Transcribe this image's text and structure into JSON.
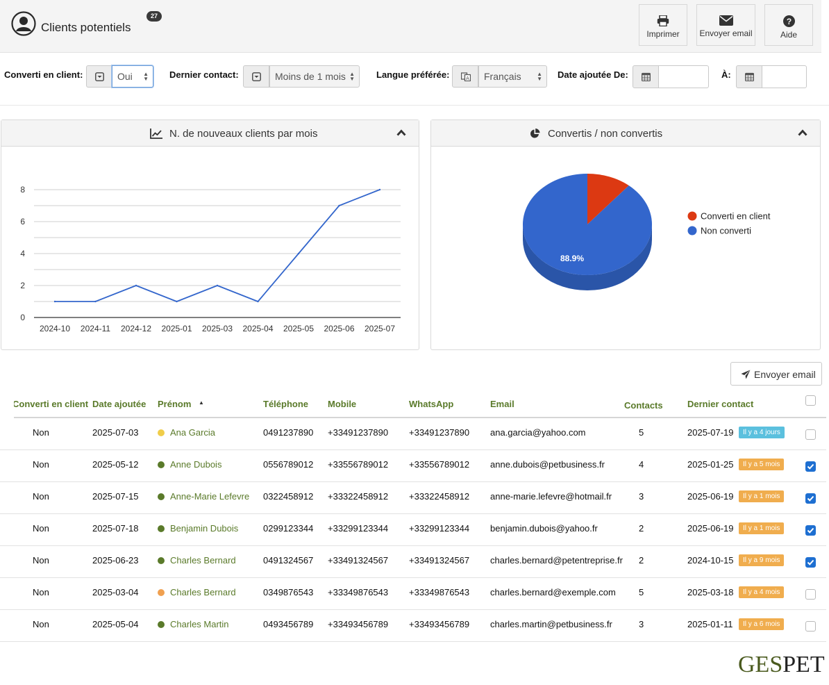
{
  "header": {
    "title": "Clients potentiels",
    "count": "27",
    "buttons": {
      "print": "Imprimer",
      "email": "Envoyer email",
      "help": "Aide"
    }
  },
  "filters": {
    "converted": {
      "label": "Converti en client:",
      "value": "Oui"
    },
    "last_contact": {
      "label": "Dernier contact:",
      "value": "Moins de 1 mois"
    },
    "language": {
      "label": "Langue préférée:",
      "value": "Français"
    },
    "date_from": {
      "label": "Date ajoutée De:",
      "value": ""
    },
    "date_to": {
      "label": "À:",
      "value": ""
    }
  },
  "panels": {
    "left_title": "N. de nouveaux clients par mois",
    "right_title": "Convertis / non convertis"
  },
  "chart_data": [
    {
      "type": "line",
      "title": "N. de nouveaux clients par mois",
      "categories": [
        "2024-10",
        "2024-11",
        "2024-12",
        "2025-01",
        "2025-03",
        "2025-04",
        "2025-05",
        "2025-06",
        "2025-07"
      ],
      "series": [
        {
          "values": [
            1,
            1,
            2,
            1,
            2,
            1,
            4,
            7,
            8
          ]
        }
      ],
      "y_ticks": [
        0,
        2,
        4,
        6,
        8
      ],
      "ylim": [
        0,
        8
      ],
      "grid": true,
      "color": "#3366cc"
    },
    {
      "type": "pie",
      "title": "Convertis / non convertis",
      "slices": [
        {
          "label": "Converti en client",
          "value": 11.1,
          "color": "#dc3912"
        },
        {
          "label": "Non converti",
          "value": 88.9,
          "color": "#3366cc"
        }
      ],
      "data_labels": [
        "88.9%"
      ],
      "legend": "right"
    }
  ],
  "table": {
    "send_email_label": "Envoyer email",
    "columns": [
      "Converti en client",
      "Date ajoutée",
      "Prénom",
      "Téléphone",
      "Mobile",
      "WhatsApp",
      "Email",
      "Contacts",
      "Dernier contact"
    ],
    "rows": [
      {
        "converted": "Non",
        "added": "2025-07-03",
        "dot": "#f0cd4a",
        "name": "Ana Garcia",
        "phone": "0491237890",
        "mobile": "+33491237890",
        "whatsapp": "+33491237890",
        "email": "ana.garcia@yahoo.com",
        "contacts": "5",
        "last": "2025-07-19",
        "ago": "Il y a 4 jours",
        "ago_color": "#5bc0de",
        "checked": false
      },
      {
        "converted": "Non",
        "added": "2025-05-12",
        "dot": "#5a7a2a",
        "name": "Anne Dubois",
        "phone": "0556789012",
        "mobile": "+33556789012",
        "whatsapp": "+33556789012",
        "email": "anne.dubois@petbusiness.fr",
        "contacts": "4",
        "last": "2025-01-25",
        "ago": "Il y a 5 mois",
        "ago_color": "#f0ad4e",
        "checked": true
      },
      {
        "converted": "Non",
        "added": "2025-07-15",
        "dot": "#5a7a2a",
        "name": "Anne-Marie Lefevre",
        "phone": "0322458912",
        "mobile": "+33322458912",
        "whatsapp": "+33322458912",
        "email": "anne-marie.lefevre@hotmail.fr",
        "contacts": "3",
        "last": "2025-06-19",
        "ago": "Il y a 1 mois",
        "ago_color": "#f0ad4e",
        "checked": true
      },
      {
        "converted": "Non",
        "added": "2025-07-18",
        "dot": "#5a7a2a",
        "name": "Benjamin Dubois",
        "phone": "0299123344",
        "mobile": "+33299123344",
        "whatsapp": "+33299123344",
        "email": "benjamin.dubois@yahoo.fr",
        "contacts": "2",
        "last": "2025-06-19",
        "ago": "Il y a 1 mois",
        "ago_color": "#f0ad4e",
        "checked": true
      },
      {
        "converted": "Non",
        "added": "2025-06-23",
        "dot": "#5a7a2a",
        "name": "Charles Bernard",
        "phone": "0491324567",
        "mobile": "+33491324567",
        "whatsapp": "+33491324567",
        "email": "charles.bernard@petentreprise.fr",
        "contacts": "2",
        "last": "2024-10-15",
        "ago": "Il y a 9 mois",
        "ago_color": "#f0ad4e",
        "checked": true
      },
      {
        "converted": "Non",
        "added": "2025-03-04",
        "dot": "#f0a050",
        "name": "Charles Bernard",
        "phone": "0349876543",
        "mobile": "+33349876543",
        "whatsapp": "+33349876543",
        "email": "charles.bernard@exemple.com",
        "contacts": "5",
        "last": "2025-03-18",
        "ago": "Il y a 4 mois",
        "ago_color": "#f0ad4e",
        "checked": false
      },
      {
        "converted": "Non",
        "added": "2025-05-04",
        "dot": "#5a7a2a",
        "name": "Charles Martin",
        "phone": "0493456789",
        "mobile": "+33493456789",
        "whatsapp": "+33493456789",
        "email": "charles.martin@petbusiness.fr",
        "contacts": "3",
        "last": "2025-01-11",
        "ago": "Il y a 6 mois",
        "ago_color": "#f0ad4e",
        "checked": false
      }
    ]
  },
  "logo": {
    "part1": "GES",
    "part2": "PET"
  }
}
